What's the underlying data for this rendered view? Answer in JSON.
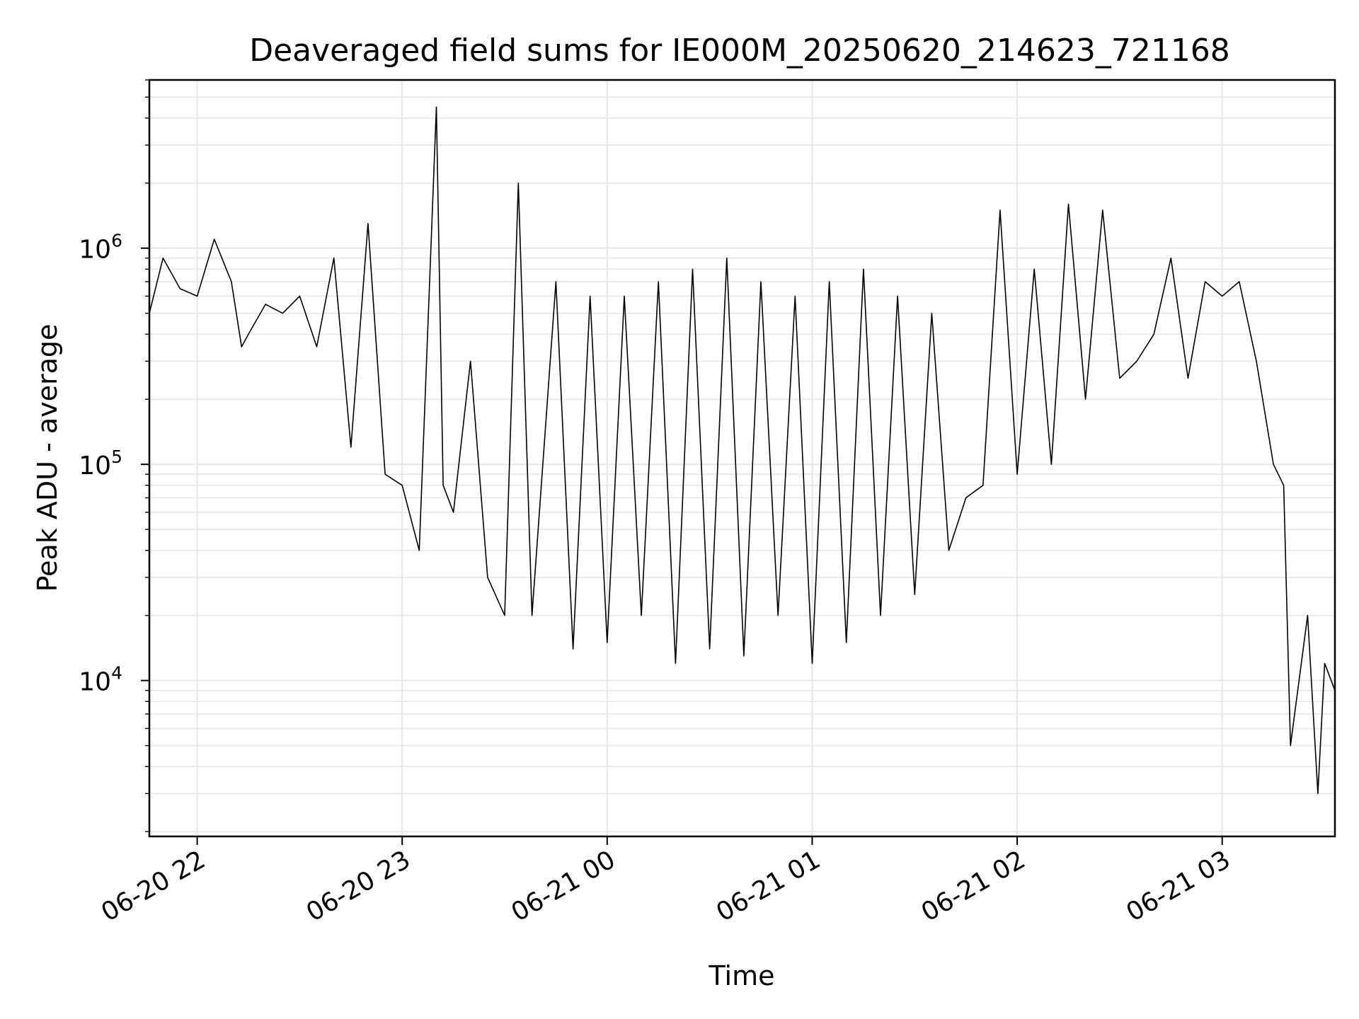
{
  "chart_data": {
    "type": "line",
    "title": "Deaveraged field sums for IE000M_20250620_214623_721168",
    "xlabel": "Time",
    "ylabel": "Peak ADU - average",
    "y_scale": "log",
    "ylim": [
      1900,
      6000000
    ],
    "xlim": [
      "2025-06-20 21:46",
      "2025-06-21 03:33"
    ],
    "grid": true,
    "line_color": "#000000",
    "grid_color": "#e6e6e6",
    "x_ticks": [
      "2025-06-20 22:00",
      "2025-06-20 23:00",
      "2025-06-21 00:00",
      "2025-06-21 01:00",
      "2025-06-21 02:00",
      "2025-06-21 03:00"
    ],
    "x_tick_labels": [
      "06-20 22",
      "06-20 23",
      "06-21 00",
      "06-21 01",
      "06-21 02",
      "06-21 03"
    ],
    "y_ticks": [
      10000,
      100000,
      1000000
    ],
    "y_tick_labels": [
      {
        "base": "10",
        "exp": "4"
      },
      {
        "base": "10",
        "exp": "5"
      },
      {
        "base": "10",
        "exp": "6"
      }
    ],
    "series": [
      {
        "x": [
          "2025-06-20 21:46",
          "2025-06-20 21:50",
          "2025-06-20 21:55",
          "2025-06-20 22:00",
          "2025-06-20 22:05",
          "2025-06-20 22:10",
          "2025-06-20 22:13",
          "2025-06-20 22:15",
          "2025-06-20 22:20",
          "2025-06-20 22:25",
          "2025-06-20 22:30",
          "2025-06-20 22:35",
          "2025-06-20 22:40",
          "2025-06-20 22:45",
          "2025-06-20 22:50",
          "2025-06-20 22:55",
          "2025-06-20 23:00",
          "2025-06-20 23:05",
          "2025-06-20 23:10",
          "2025-06-20 23:12",
          "2025-06-20 23:15",
          "2025-06-20 23:20",
          "2025-06-20 23:25",
          "2025-06-20 23:30",
          "2025-06-20 23:34",
          "2025-06-20 23:38",
          "2025-06-20 23:45",
          "2025-06-20 23:50",
          "2025-06-20 23:55",
          "2025-06-21 00:00",
          "2025-06-21 00:05",
          "2025-06-21 00:10",
          "2025-06-21 00:15",
          "2025-06-21 00:20",
          "2025-06-21 00:25",
          "2025-06-21 00:30",
          "2025-06-21 00:35",
          "2025-06-21 00:40",
          "2025-06-21 00:45",
          "2025-06-21 00:50",
          "2025-06-21 00:55",
          "2025-06-21 01:00",
          "2025-06-21 01:05",
          "2025-06-21 01:10",
          "2025-06-21 01:15",
          "2025-06-21 01:20",
          "2025-06-21 01:25",
          "2025-06-21 01:30",
          "2025-06-21 01:35",
          "2025-06-21 01:40",
          "2025-06-21 01:45",
          "2025-06-21 01:50",
          "2025-06-21 01:55",
          "2025-06-21 02:00",
          "2025-06-21 02:05",
          "2025-06-21 02:10",
          "2025-06-21 02:15",
          "2025-06-21 02:20",
          "2025-06-21 02:25",
          "2025-06-21 02:30",
          "2025-06-21 02:35",
          "2025-06-21 02:40",
          "2025-06-21 02:45",
          "2025-06-21 02:50",
          "2025-06-21 02:55",
          "2025-06-21 03:00",
          "2025-06-21 03:05",
          "2025-06-21 03:10",
          "2025-06-21 03:15",
          "2025-06-21 03:18",
          "2025-06-21 03:20",
          "2025-06-21 03:25",
          "2025-06-21 03:28",
          "2025-06-21 03:30",
          "2025-06-21 03:33"
        ],
        "y": [
          500000,
          900000,
          650000,
          600000,
          1100000,
          700000,
          350000,
          400000,
          550000,
          500000,
          600000,
          350000,
          900000,
          120000,
          1300000,
          90000,
          80000,
          40000,
          4500000,
          80000,
          60000,
          300000,
          30000,
          20000,
          2000000,
          20000,
          700000,
          14000,
          600000,
          15000,
          600000,
          20000,
          700000,
          12000,
          800000,
          14000,
          900000,
          13000,
          700000,
          20000,
          600000,
          12000,
          700000,
          15000,
          800000,
          20000,
          600000,
          25000,
          500000,
          40000,
          70000,
          80000,
          1500000,
          90000,
          800000,
          100000,
          1600000,
          200000,
          1500000,
          250000,
          300000,
          400000,
          900000,
          250000,
          700000,
          600000,
          700000,
          300000,
          100000,
          80000,
          5000,
          20000,
          3000,
          12000,
          9000
        ]
      }
    ]
  }
}
